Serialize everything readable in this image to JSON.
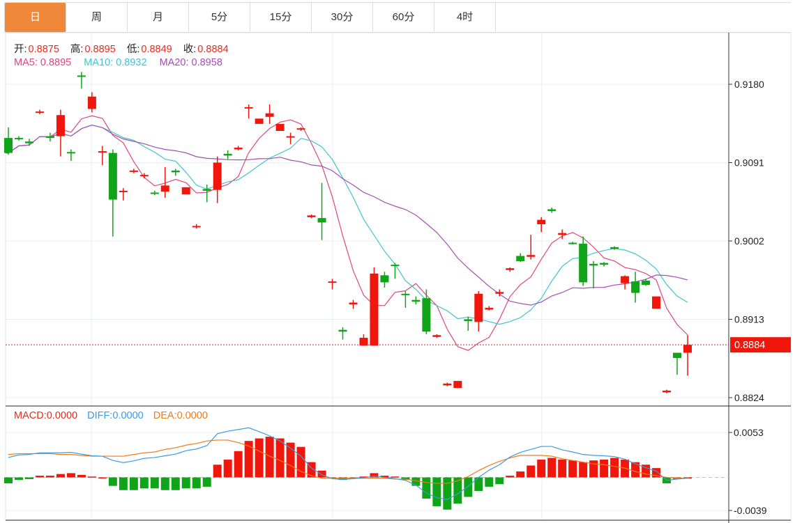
{
  "tabs": [
    {
      "label": "日",
      "active": true
    },
    {
      "label": "周"
    },
    {
      "label": "月"
    },
    {
      "label": "5分"
    },
    {
      "label": "15分"
    },
    {
      "label": "30分"
    },
    {
      "label": "60分"
    },
    {
      "label": "4时"
    }
  ],
  "ohlc_legend": {
    "open_label": "开:",
    "open": "0.8875",
    "high_label": "高:",
    "high": "0.8895",
    "low_label": "低:",
    "low": "0.8849",
    "close_label": "收:",
    "close": "0.8884"
  },
  "ma_legend": {
    "ma5": "MA5: 0.8895",
    "ma10": "MA10: 0.8932",
    "ma20": "MA20: 0.8958"
  },
  "macd_legend": {
    "macd": "MACD:0.0000",
    "diff": "DIFF:0.0000",
    "dea": "DEA:0.0000"
  },
  "colors": {
    "up": "#f0160c",
    "down": "#10a519",
    "ma5": "#e0457b",
    "ma10": "#3ec4d4",
    "ma20": "#a64bb5",
    "diff": "#3d9be0",
    "dea": "#f07a1a",
    "accent": "#f0883a"
  },
  "chart_data": {
    "type": "candlestick",
    "price_axis_ticks": [
      "0.9180",
      "0.9091",
      "0.9002",
      "0.8913",
      "0.8824"
    ],
    "price_range": [
      0.8824,
      0.918
    ],
    "last_price": "0.8884",
    "macd_axis_ticks": [
      "0.0053",
      "-0.0039"
    ],
    "macd_range": [
      -0.0039,
      0.0053
    ],
    "candles_ohlc": [
      [
        0.9119,
        0.9102,
        0.9131,
        0.91
      ],
      [
        0.9119,
        0.9118,
        0.9121,
        0.9116
      ],
      [
        0.9115,
        0.9113,
        0.9118,
        0.911
      ],
      [
        0.9148,
        0.9149,
        0.9151,
        0.9146
      ],
      [
        0.9121,
        0.9119,
        0.9125,
        0.9115
      ],
      [
        0.9121,
        0.9145,
        0.9151,
        0.9098
      ],
      [
        0.9103,
        0.9102,
        0.9106,
        0.9093
      ],
      [
        0.919,
        0.9189,
        0.9194,
        0.9175
      ],
      [
        0.9152,
        0.9166,
        0.9171,
        0.9148
      ],
      [
        0.9103,
        0.9104,
        0.911,
        0.9088
      ],
      [
        0.9102,
        0.9049,
        0.9106,
        0.9007
      ],
      [
        0.9058,
        0.9059,
        0.9062,
        0.9048
      ],
      [
        0.9081,
        0.9082,
        0.9084,
        0.9079
      ],
      [
        0.9076,
        0.9077,
        0.9079,
        0.9073
      ],
      [
        0.9057,
        0.9056,
        0.9059,
        0.9054
      ],
      [
        0.9058,
        0.9065,
        0.9086,
        0.9051
      ],
      [
        0.9082,
        0.908,
        0.9084,
        0.9076
      ],
      [
        0.9055,
        0.9063,
        0.9063,
        0.9055
      ],
      [
        0.9018,
        0.9019,
        0.9021,
        0.9016
      ],
      [
        0.9061,
        0.9059,
        0.9066,
        0.9046
      ],
      [
        0.906,
        0.9091,
        0.9098,
        0.9045
      ],
      [
        0.9101,
        0.9099,
        0.9105,
        0.9095
      ],
      [
        0.9106,
        0.9108,
        0.911,
        0.9105
      ],
      [
        0.9153,
        0.9154,
        0.9157,
        0.9141
      ],
      [
        0.9135,
        0.9141,
        0.9141,
        0.9135
      ],
      [
        0.9143,
        0.9147,
        0.9157,
        0.9135
      ],
      [
        0.9127,
        0.9135,
        0.9135,
        0.9127
      ],
      [
        0.912,
        0.9121,
        0.9125,
        0.9112
      ],
      [
        0.9129,
        0.913,
        0.9131,
        0.9127
      ],
      [
        0.9029,
        0.9031,
        0.9032,
        0.9028
      ],
      [
        0.9028,
        0.9023,
        0.9068,
        0.9003
      ],
      [
        0.8955,
        0.8956,
        0.8959,
        0.8947
      ],
      [
        0.8901,
        0.8899,
        0.8904,
        0.889
      ],
      [
        0.893,
        0.8932,
        0.8935,
        0.8925
      ],
      [
        0.8883,
        0.8892,
        0.8896,
        0.8883
      ],
      [
        0.8883,
        0.8965,
        0.8972,
        0.8883
      ],
      [
        0.8963,
        0.8955,
        0.8967,
        0.8949
      ],
      [
        0.8975,
        0.8974,
        0.8977,
        0.8959
      ],
      [
        0.8942,
        0.8941,
        0.8945,
        0.8926
      ],
      [
        0.8935,
        0.8933,
        0.8939,
        0.893
      ],
      [
        0.8937,
        0.8899,
        0.8947,
        0.8896
      ],
      [
        0.8893,
        0.8895,
        0.8896,
        0.8892
      ],
      [
        0.8838,
        0.884,
        0.8841,
        0.8837
      ],
      [
        0.8835,
        0.8843,
        0.8843,
        0.8835
      ],
      [
        0.8913,
        0.8911,
        0.8916,
        0.89
      ],
      [
        0.891,
        0.8942,
        0.8945,
        0.8899
      ],
      [
        0.8924,
        0.8926,
        0.8928,
        0.8923
      ],
      [
        0.8942,
        0.8944,
        0.8947,
        0.8939
      ],
      [
        0.8969,
        0.8971,
        0.8972,
        0.8967
      ],
      [
        0.8985,
        0.8979,
        0.8988,
        0.8978
      ],
      [
        0.8984,
        0.8986,
        0.9009,
        0.8981
      ],
      [
        0.9021,
        0.9026,
        0.9029,
        0.9012
      ],
      [
        0.9038,
        0.9036,
        0.904,
        0.9034
      ],
      [
        0.9009,
        0.9011,
        0.9015,
        0.9004
      ],
      [
        0.9,
        0.8999,
        0.9001,
        0.8998
      ],
      [
        0.8999,
        0.8955,
        0.9007,
        0.8951
      ],
      [
        0.8976,
        0.8974,
        0.8979,
        0.8948
      ],
      [
        0.8977,
        0.8975,
        0.8978,
        0.8973
      ],
      [
        0.8995,
        0.8993,
        0.8996,
        0.8992
      ],
      [
        0.8954,
        0.8962,
        0.8963,
        0.8947
      ],
      [
        0.8956,
        0.8943,
        0.8967,
        0.8932
      ],
      [
        0.8957,
        0.8952,
        0.8959,
        0.8951
      ],
      [
        0.8925,
        0.8939,
        0.8939,
        0.8925
      ],
      [
        0.883,
        0.8832,
        0.8833,
        0.8829
      ],
      [
        0.8875,
        0.8869,
        0.8875,
        0.885
      ],
      [
        0.8875,
        0.8884,
        0.8895,
        0.8849
      ]
    ],
    "macd_hist": [
      -0.0007,
      -0.0003,
      -0.0002,
      0.0002,
      0.0002,
      0.0004,
      0.0005,
      0.0003,
      0.0001,
      0,
      -0.001,
      -0.0015,
      -0.0015,
      -0.0013,
      -0.0013,
      -0.0015,
      -0.0015,
      -0.0013,
      -0.0013,
      -0.0011,
      0.0015,
      0.0021,
      0.0031,
      0.0043,
      0.0046,
      0.0048,
      0.0046,
      0.0041,
      0.0036,
      0.0018,
      0.0008,
      -0.0001,
      -0.0003,
      -0.0001,
      0.0001,
      0.0005,
      0.0002,
      0.0001,
      -0.0003,
      -0.001,
      -0.0025,
      -0.0034,
      -0.0038,
      -0.0031,
      -0.0023,
      -0.0016,
      -0.0011,
      -0.0008,
      0.0002,
      0.0007,
      0.0014,
      0.0021,
      0.0023,
      0.0021,
      0.002,
      0.0018,
      0.002,
      0.0021,
      0.0023,
      0.0021,
      0.0018,
      0.0015,
      0.0011,
      -0.0007,
      -0.0002,
      0
    ],
    "dea": [
      0.0027,
      0.0028,
      0.0028,
      0.0028,
      0.0028,
      0.0027,
      0.0027,
      0.0026,
      0.0025,
      0.0025,
      0.0025,
      0.0025,
      0.0027,
      0.0029,
      0.003,
      0.0033,
      0.0035,
      0.0038,
      0.004,
      0.0043,
      0.0044,
      0.0044,
      0.0041,
      0.0037,
      0.0031,
      0.0025,
      0.002,
      0.0014,
      0.0007,
      0.0002,
      -0.0001,
      -0.0001,
      -0.0001,
      -0.0001,
      -0.0001,
      -0.0001,
      -0.0001,
      -0.0002,
      -0.0002,
      -0.0004,
      -0.0006,
      -0.0007,
      -0.0007,
      -0.0004,
      0.0001,
      0.0008,
      0.0014,
      0.0019,
      0.0023,
      0.0026,
      0.0026,
      0.0026,
      0.0025,
      0.0022,
      0.002,
      0.0018,
      0.0016,
      0.0015,
      0.0013,
      0.0011,
      0.0007,
      0.0004,
      0.0002,
      0,
      -0.0001,
      -0.0001
    ]
  }
}
